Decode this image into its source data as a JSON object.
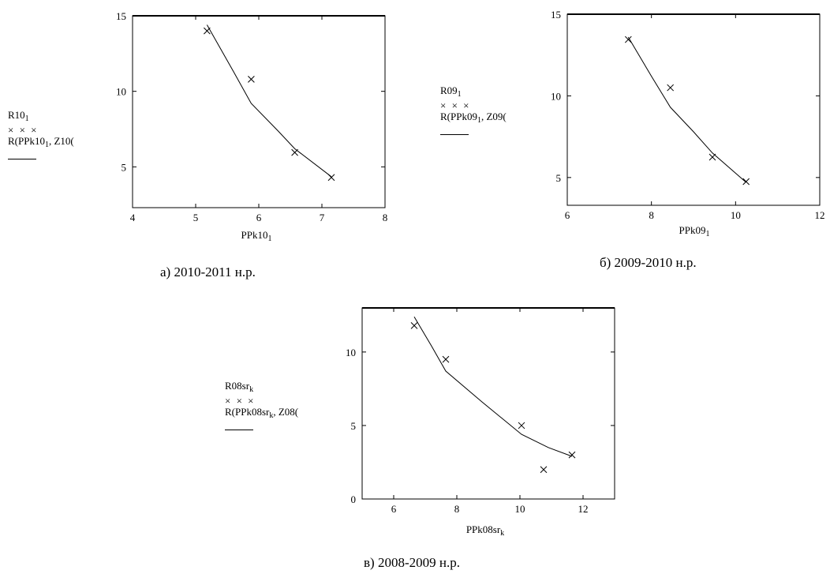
{
  "chart_data": [
    {
      "type": "scatter",
      "legend": {
        "line1": "R10",
        "line1_sub": "1",
        "marks": "× × ×",
        "line2": "R(PPk10",
        "line2_sub": "1",
        "line2_tail": ", Z10("
      },
      "xlabel": "PPk10",
      "xlabel_sub": "1",
      "caption": "а) 2010-2011 н.р.",
      "xlim": [
        4,
        8
      ],
      "ylim": [
        2.3,
        15
      ],
      "xticks": [
        4,
        5,
        6,
        7,
        8
      ],
      "yticks": [
        5,
        10,
        15
      ],
      "points": [
        [
          5.18,
          14.0
        ],
        [
          5.88,
          10.8
        ],
        [
          6.57,
          5.95
        ],
        [
          7.15,
          4.3
        ]
      ],
      "fit": [
        [
          5.18,
          14.4
        ],
        [
          5.6,
          11.3
        ],
        [
          5.88,
          9.2
        ],
        [
          6.3,
          7.4
        ],
        [
          6.57,
          6.2
        ],
        [
          7.15,
          4.35
        ]
      ]
    },
    {
      "type": "scatter",
      "legend": {
        "line1": "R09",
        "line1_sub": "1",
        "marks": "× × ×",
        "line2": "R(PPk09",
        "line2_sub": "1",
        "line2_tail": ", Z09("
      },
      "xlabel": "PPk09",
      "xlabel_sub": "1",
      "caption": "б) 2009-2010 н.р.",
      "xlim": [
        6,
        12
      ],
      "ylim": [
        3.3,
        15
      ],
      "xticks": [
        6,
        8,
        10,
        12
      ],
      "yticks": [
        5,
        10,
        15
      ],
      "points": [
        [
          7.45,
          13.45
        ],
        [
          8.45,
          10.5
        ],
        [
          9.45,
          6.25
        ],
        [
          10.25,
          4.75
        ]
      ],
      "fit": [
        [
          7.45,
          13.6
        ],
        [
          8.0,
          11.2
        ],
        [
          8.45,
          9.3
        ],
        [
          9.0,
          7.8
        ],
        [
          9.45,
          6.5
        ],
        [
          10.25,
          4.7
        ]
      ]
    },
    {
      "type": "scatter",
      "legend": {
        "line1": "R08sr",
        "line1_sub": "k",
        "marks": "× × ×",
        "line2": "R(PPk08sr",
        "line2_sub": "k",
        "line2_tail": ", Z08("
      },
      "xlabel": "PPk08sr",
      "xlabel_sub": "k",
      "caption": "в) 2008-2009 н.р.",
      "xlim": [
        5,
        13
      ],
      "ylim": [
        0,
        13
      ],
      "xticks": [
        6,
        8,
        10,
        12
      ],
      "yticks": [
        0,
        5,
        10
      ],
      "points": [
        [
          6.65,
          11.8
        ],
        [
          7.65,
          9.5
        ],
        [
          10.05,
          5.0
        ],
        [
          10.75,
          2.0
        ],
        [
          11.65,
          3.0
        ]
      ],
      "fit": [
        [
          6.65,
          12.4
        ],
        [
          7.2,
          10.4
        ],
        [
          7.65,
          8.7
        ],
        [
          8.8,
          6.6
        ],
        [
          10.05,
          4.4
        ],
        [
          10.9,
          3.5
        ],
        [
          11.65,
          2.9
        ]
      ]
    }
  ]
}
